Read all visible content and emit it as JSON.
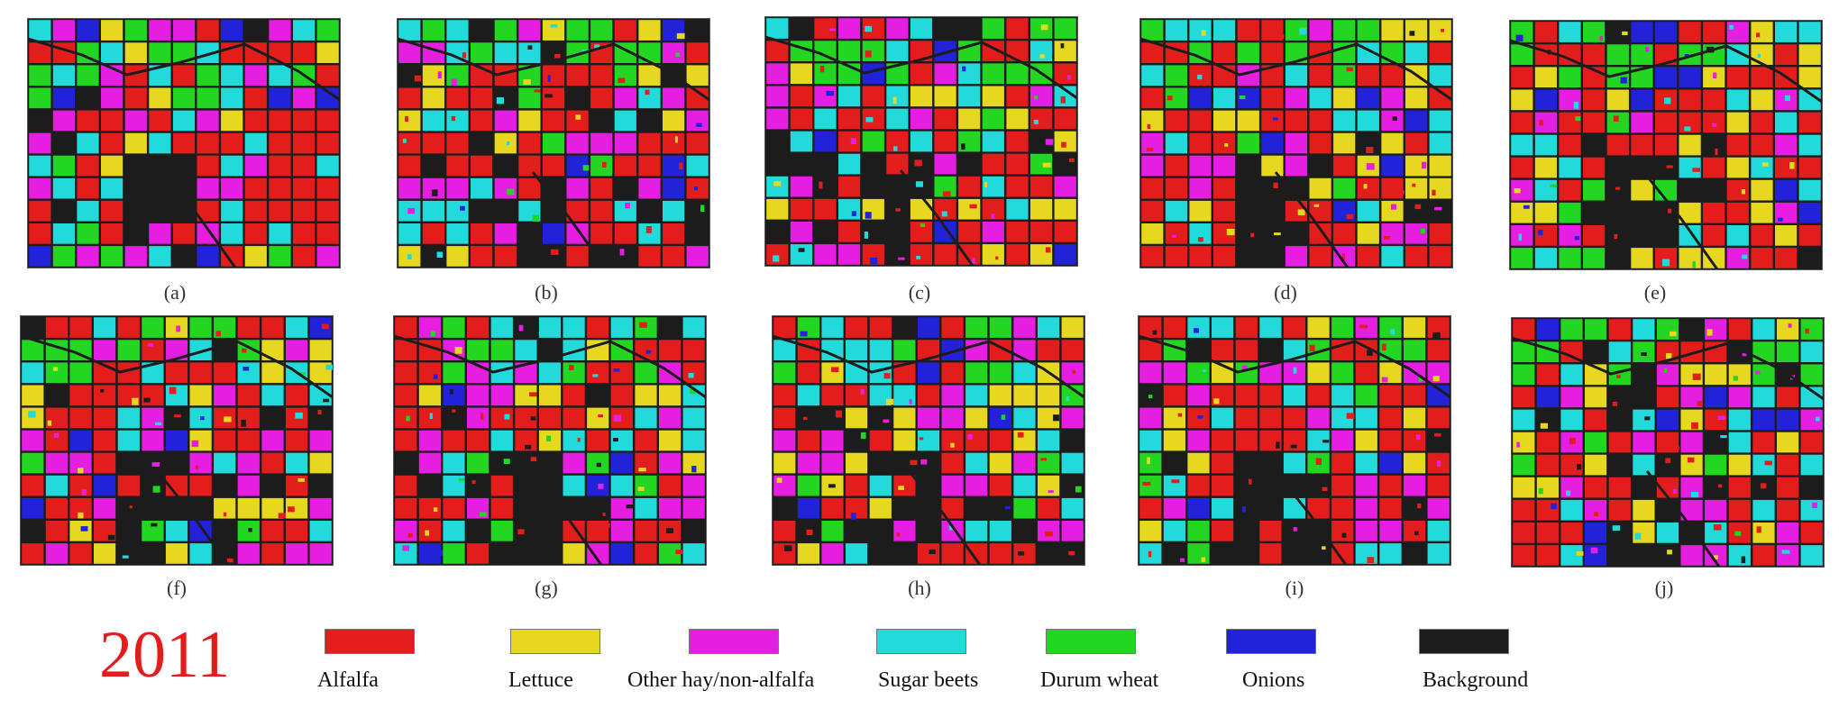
{
  "panels": [
    {
      "id": "a",
      "caption": "(a)"
    },
    {
      "id": "b",
      "caption": "(b)"
    },
    {
      "id": "c",
      "caption": "(c)"
    },
    {
      "id": "d",
      "caption": "(d)"
    },
    {
      "id": "e",
      "caption": "(e)"
    },
    {
      "id": "f",
      "caption": "(f)"
    },
    {
      "id": "g",
      "caption": "(g)"
    },
    {
      "id": "h",
      "caption": "(h)"
    },
    {
      "id": "i",
      "caption": "(i)"
    },
    {
      "id": "j",
      "caption": "(j)"
    }
  ],
  "year": "2011",
  "legend": [
    {
      "label": "Alfalfa",
      "color": "#e31c1c"
    },
    {
      "label": "Lettuce",
      "color": "#e6d81e"
    },
    {
      "label": "Other hay/non-alfalfa",
      "color": "#e61ee1"
    },
    {
      "label": "Sugar beets",
      "color": "#22dada"
    },
    {
      "label": "Durum wheat",
      "color": "#22d622"
    },
    {
      "label": "Onions",
      "color": "#2222d8"
    },
    {
      "label": "Background",
      "color": "#1c1c1c"
    }
  ]
}
